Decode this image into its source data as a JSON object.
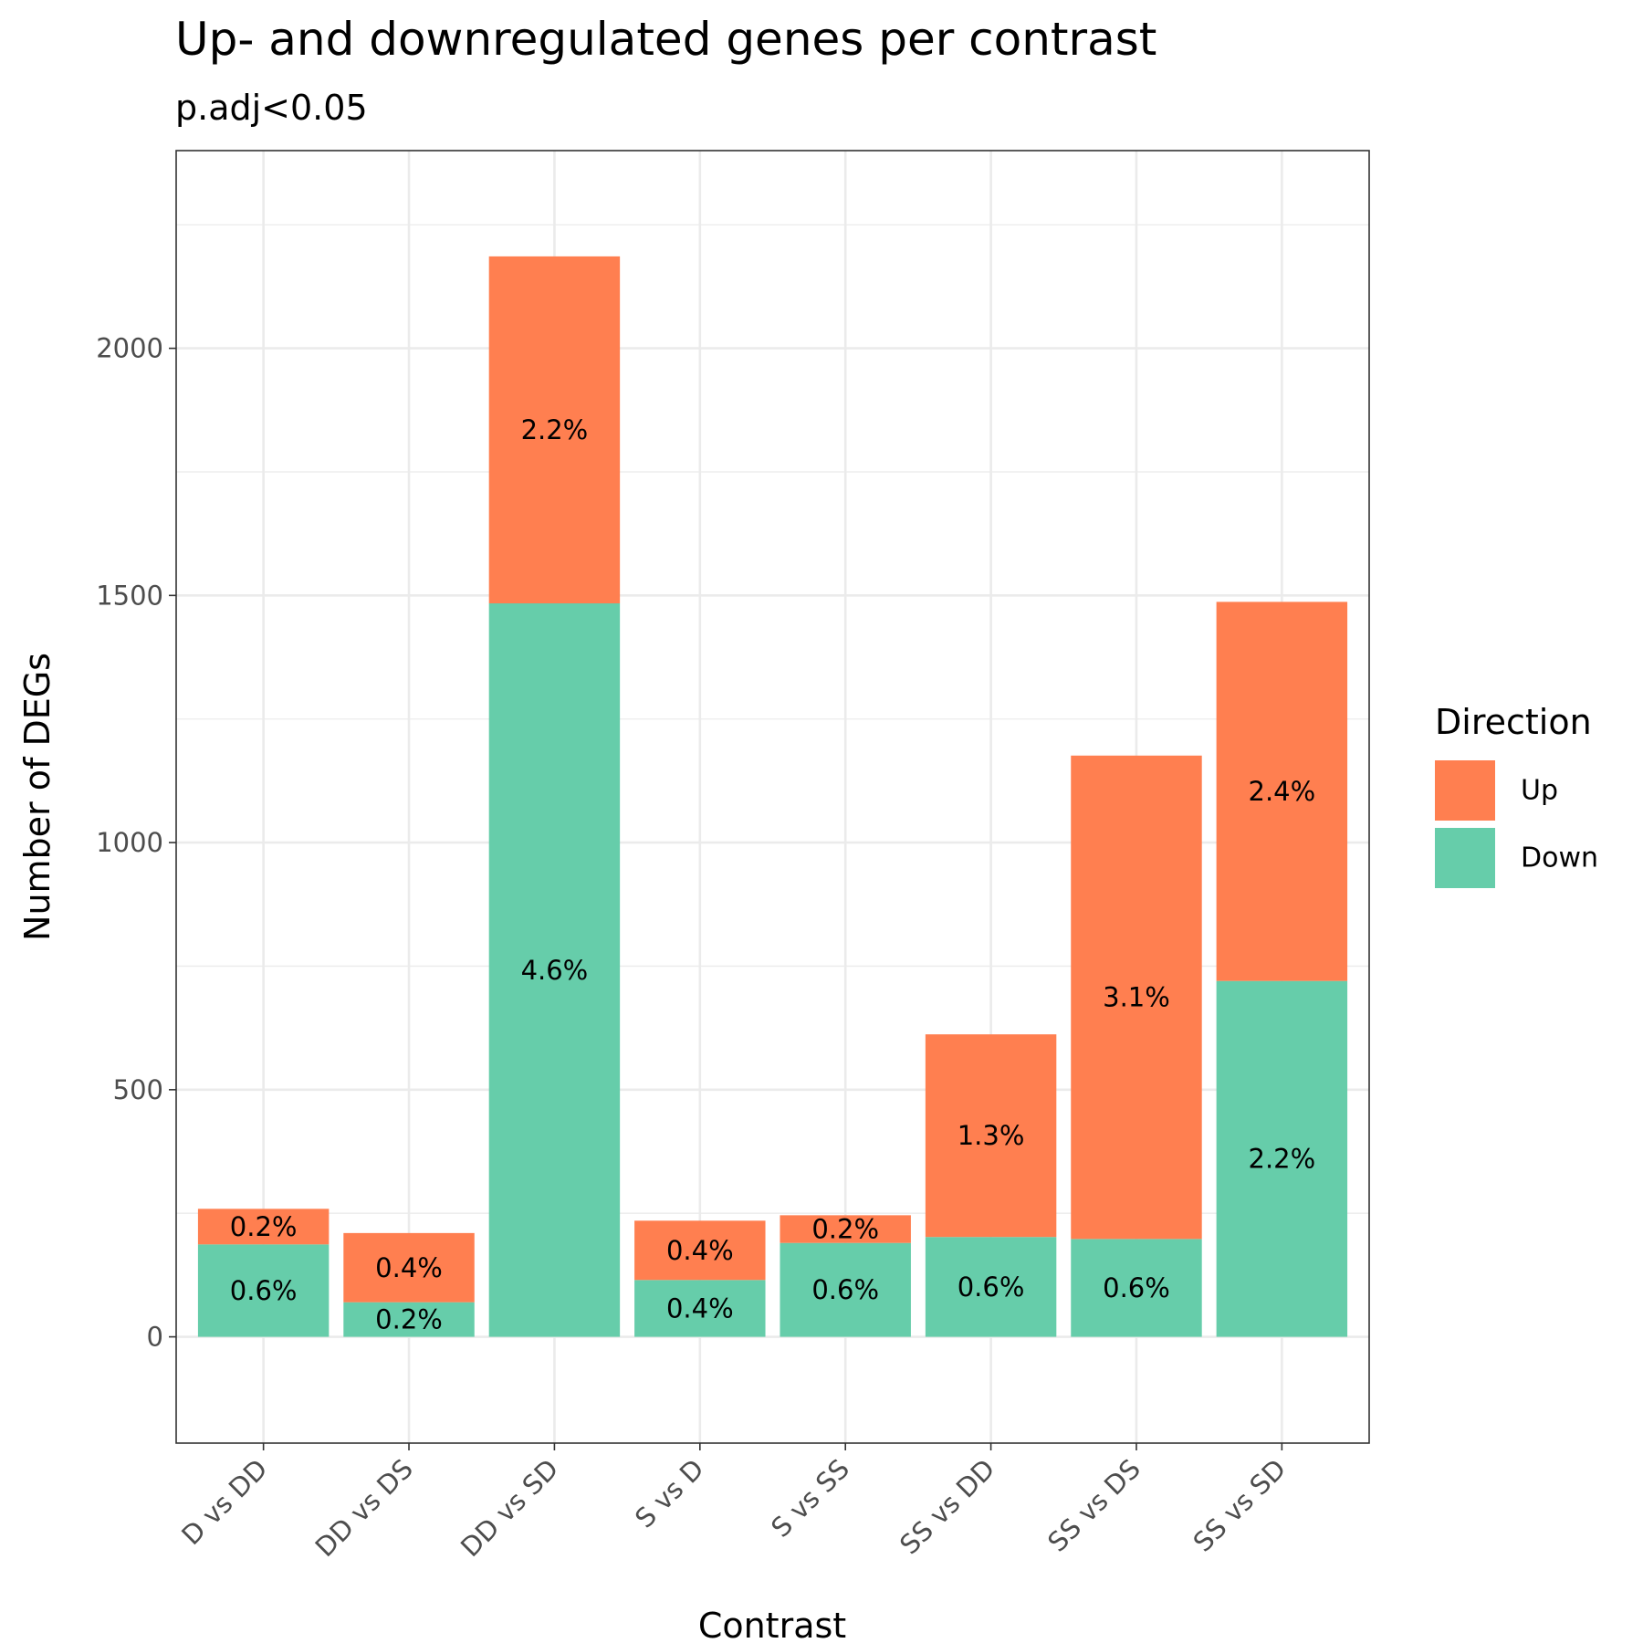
{
  "chart_data": {
    "type": "bar",
    "stacked": true,
    "title": "Up- and downregulated genes per contrast",
    "subtitle": "p.adj<0.05",
    "xlabel": "Contrast",
    "ylabel": "Number of DEGs",
    "ylim": [
      -215,
      2400
    ],
    "yticks": [
      0,
      500,
      1000,
      1500,
      2000
    ],
    "tick_labels": [
      "0",
      "500",
      "1000",
      "1500",
      "2000"
    ],
    "grid": true,
    "legend": {
      "title": "Direction",
      "placement": "right"
    },
    "categories": [
      "D vs DD",
      "DD vs DS",
      "DD vs SD",
      "S vs D",
      "S vs SS",
      "SS vs DD",
      "SS vs DS",
      "SS vs SD"
    ],
    "series": [
      {
        "name": "Down",
        "color": "#66CDAA",
        "values": [
          187,
          70,
          1484,
          115,
          190,
          202,
          198,
          720
        ],
        "labels": [
          "0.6%",
          "0.2%",
          "4.6%",
          "0.4%",
          "0.6%",
          "0.6%",
          "0.6%",
          "2.2%"
        ]
      },
      {
        "name": "Up",
        "color": "#FF7F50",
        "values": [
          72,
          140,
          702,
          120,
          56,
          410,
          978,
          767
        ],
        "labels": [
          "0.2%",
          "0.4%",
          "2.2%",
          "0.4%",
          "0.2%",
          "1.3%",
          "3.1%",
          "2.4%"
        ]
      }
    ]
  }
}
